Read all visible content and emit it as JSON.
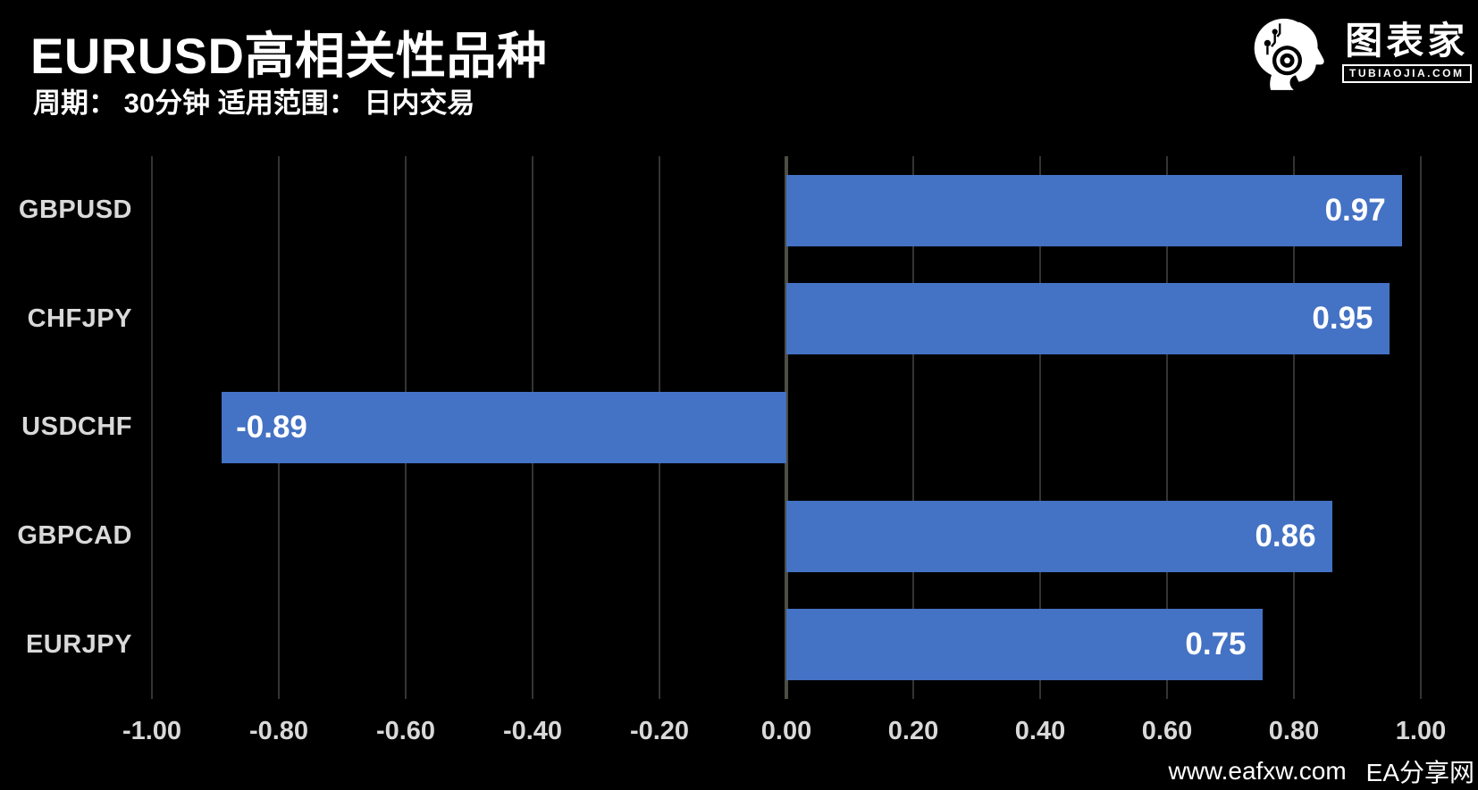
{
  "page": {
    "background": "#000000"
  },
  "header": {
    "title": "EURUSD高相关性品种",
    "subtitle": "周期： 30分钟  适用范围： 日内交易"
  },
  "logo": {
    "icon": "robot-head-with-headphone-icon",
    "name": "图表家",
    "domain": "TUBIAOJIA.COM"
  },
  "footer": {
    "site": "www.eafxw.com",
    "name": "EA分享网"
  },
  "chart_data": {
    "type": "bar",
    "orientation": "horizontal",
    "title": "EURUSD高相关性品种",
    "subtitle": "周期： 30分钟  适用范围： 日内交易",
    "categories": [
      "GBPUSD",
      "CHFJPY",
      "USDCHF",
      "GBPCAD",
      "EURJPY"
    ],
    "values": [
      0.97,
      0.95,
      -0.89,
      0.86,
      0.75
    ],
    "value_labels": [
      "0.97",
      "0.95",
      "-0.89",
      "0.86",
      "0.75"
    ],
    "xlabel": "",
    "ylabel": "",
    "xlim": [
      -1.0,
      1.0
    ],
    "tick_labels": [
      "-1.00",
      "-0.80",
      "-0.60",
      "-0.40",
      "-0.20",
      "0.00",
      "0.20",
      "0.40",
      "0.60",
      "0.80",
      "1.00"
    ],
    "grid": "vertical-gridlines-on",
    "legend": "none",
    "colors": {
      "background": "#000000",
      "bar": "#4472c4",
      "gridline": "#343434",
      "zero_axis": "#4d4d45",
      "category_label": "#d9d9d9",
      "tick_label": "#d9d9d9",
      "value_label": "#ffffff",
      "title": "#ffffff"
    }
  }
}
